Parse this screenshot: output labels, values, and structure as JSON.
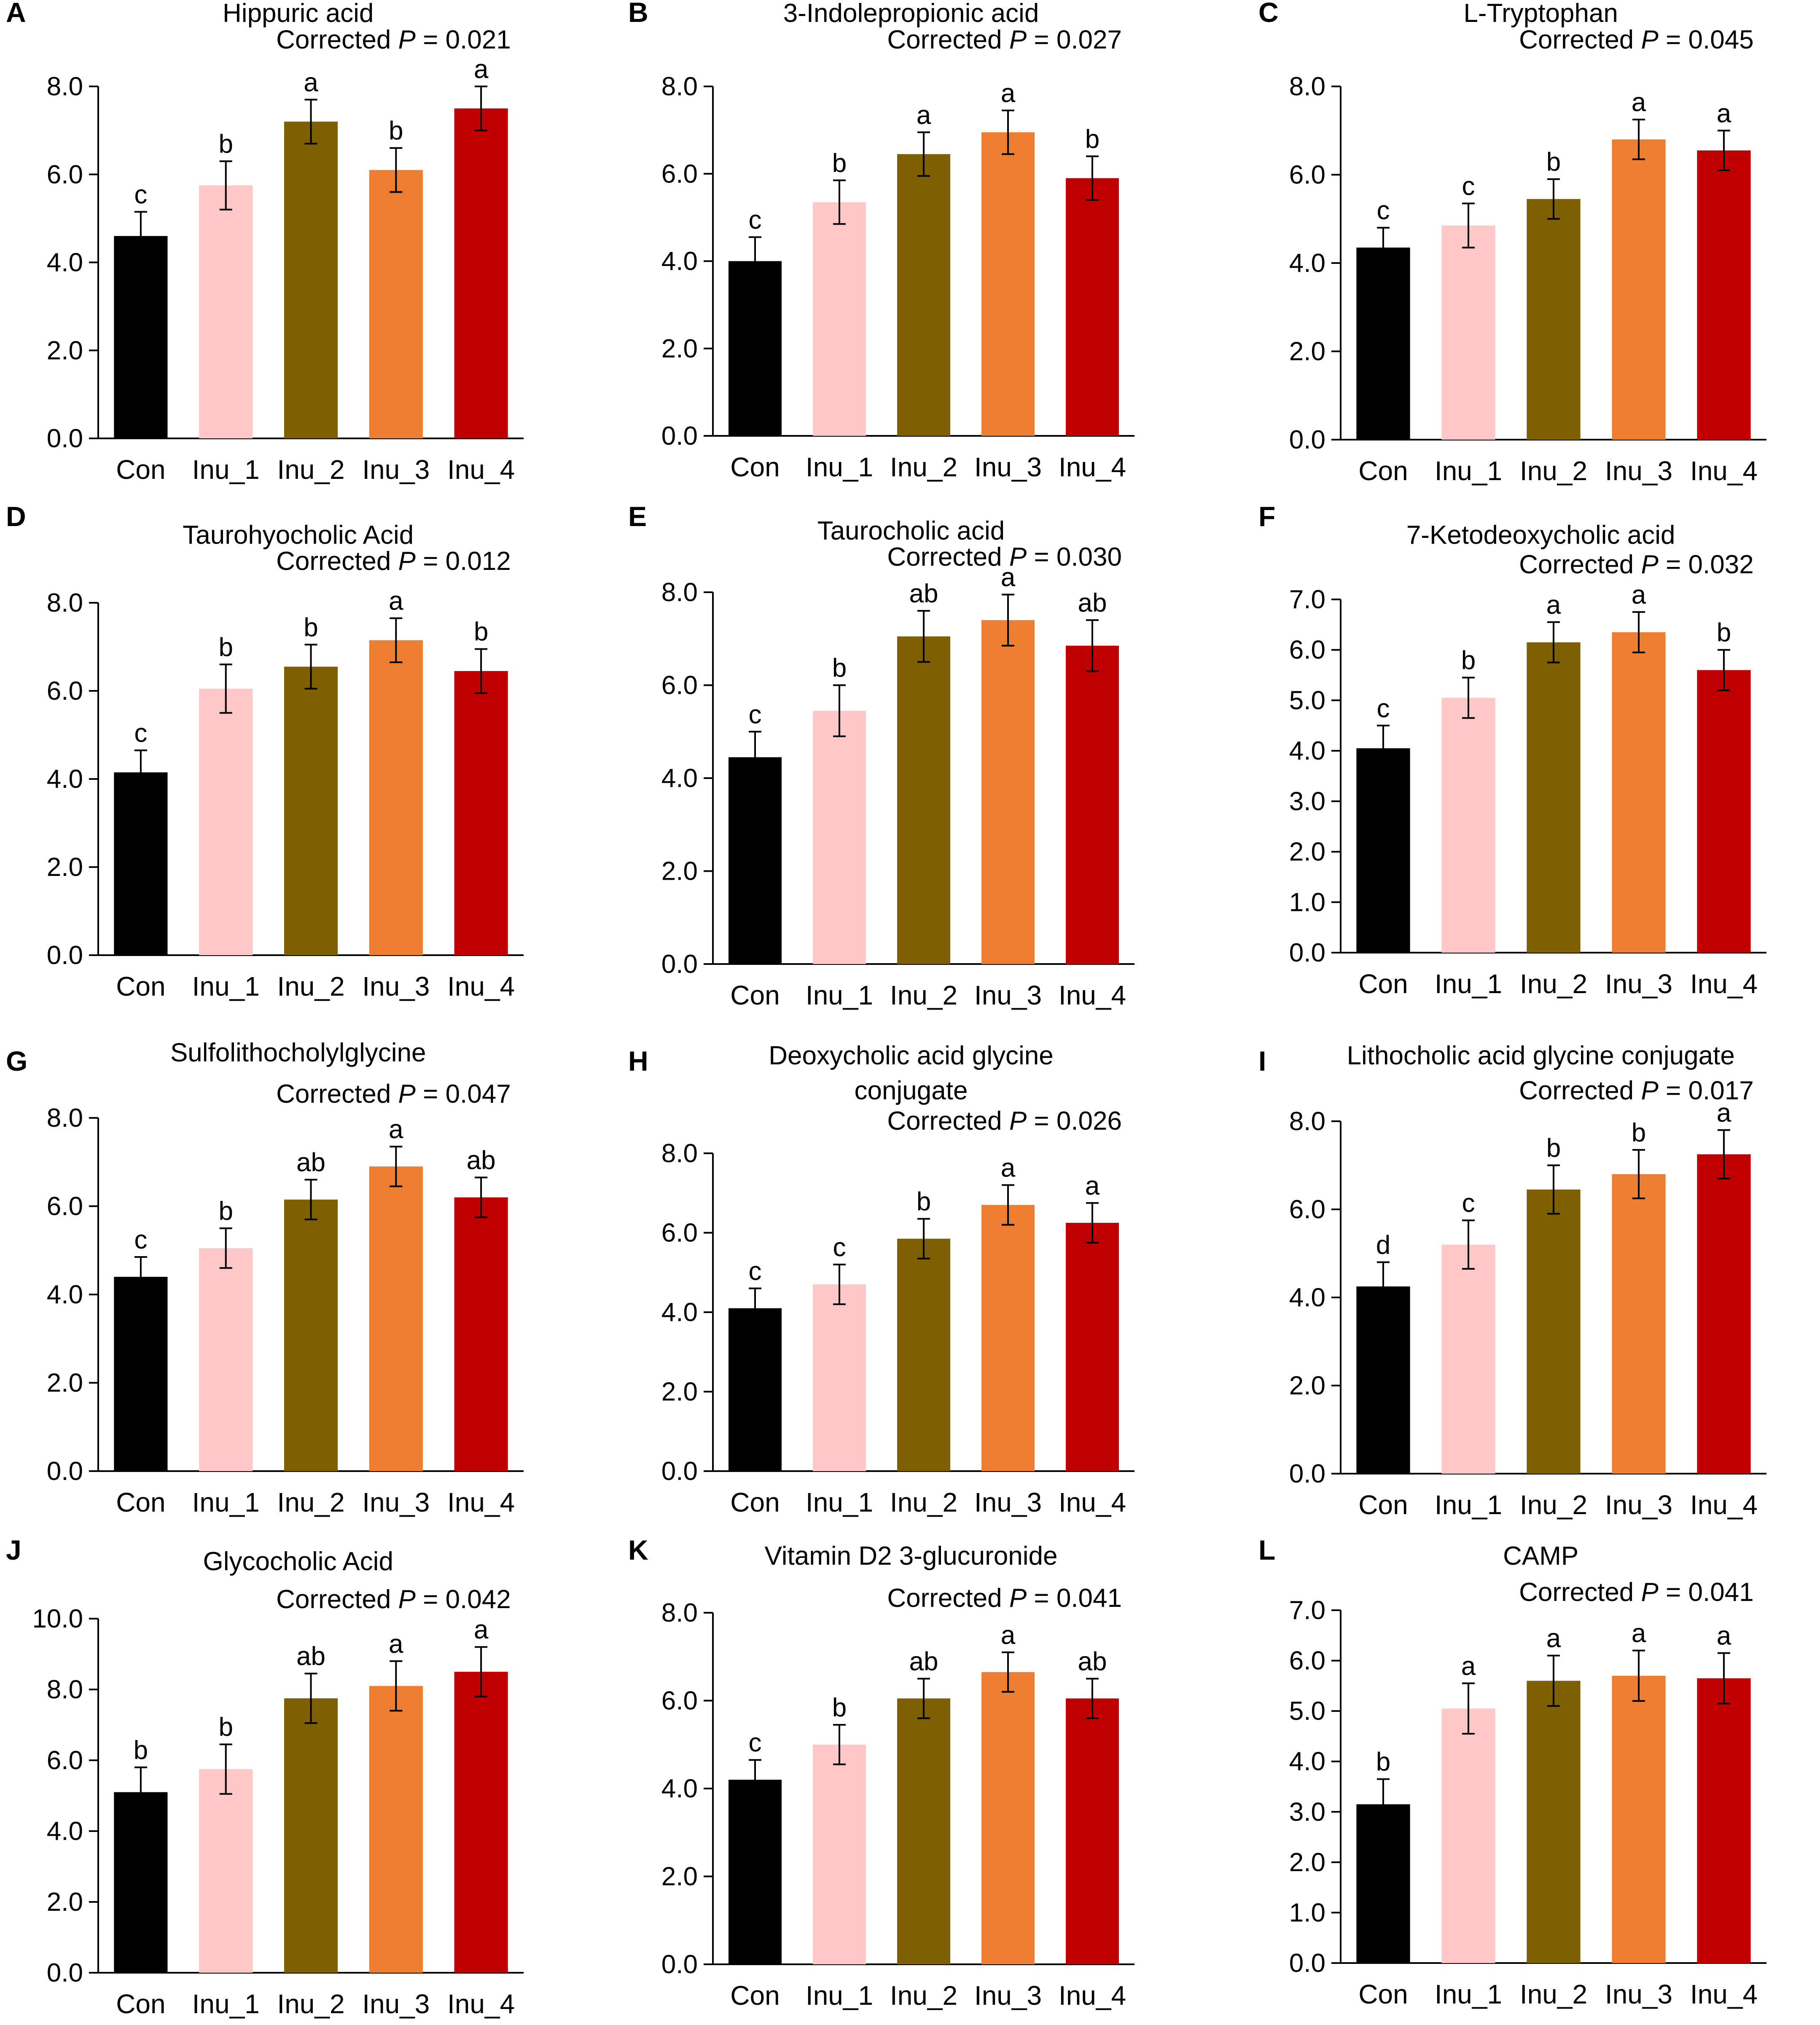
{
  "colors": {
    "Con": "#000000",
    "Inu_1": "#FFC8C8",
    "Inu_2": "#7F6000",
    "Inu_3": "#ED7D31",
    "Inu_4": "#C00000"
  },
  "pval_prefix": "Corrected",
  "pval_symbol": "P",
  "chart_data": [
    {
      "type": "bar",
      "panel": "A",
      "title": "Hippuric acid",
      "pval_rest": " = 0.021",
      "categories": [
        "Con",
        "Inu_1",
        "Inu_2",
        "Inu_3",
        "Inu_4"
      ],
      "values": [
        4.6,
        5.75,
        7.2,
        6.1,
        7.5
      ],
      "errors": [
        0.55,
        0.55,
        0.5,
        0.5,
        0.5
      ],
      "letters": [
        "c",
        "b",
        "a",
        "b",
        "a"
      ],
      "ylim": [
        0,
        8
      ],
      "yticks": [
        "0.0",
        "2.0",
        "4.0",
        "6.0",
        "8.0"
      ]
    },
    {
      "type": "bar",
      "panel": "B",
      "title": "3-Indolepropionic acid",
      "pval_rest": " = 0.027",
      "categories": [
        "Con",
        "Inu_1",
        "Inu_2",
        "Inu_3",
        "Inu_4"
      ],
      "values": [
        4.0,
        5.35,
        6.45,
        6.95,
        5.9
      ],
      "errors": [
        0.55,
        0.5,
        0.5,
        0.5,
        0.5
      ],
      "letters": [
        "c",
        "b",
        "a",
        "a",
        "b"
      ],
      "ylim": [
        0,
        8
      ],
      "yticks": [
        "0.0",
        "2.0",
        "4.0",
        "6.0",
        "8.0"
      ]
    },
    {
      "type": "bar",
      "panel": "C",
      "title": "L-Tryptophan",
      "pval_rest": " = 0.045",
      "categories": [
        "Con",
        "Inu_1",
        "Inu_2",
        "Inu_3",
        "Inu_4"
      ],
      "values": [
        4.35,
        4.85,
        5.45,
        6.8,
        6.55
      ],
      "errors": [
        0.45,
        0.5,
        0.45,
        0.45,
        0.45
      ],
      "letters": [
        "c",
        "c",
        "b",
        "a",
        "a"
      ],
      "ylim": [
        0,
        8
      ],
      "yticks": [
        "0.0",
        "2.0",
        "4.0",
        "6.0",
        "8.0"
      ]
    },
    {
      "type": "bar",
      "panel": "D",
      "title": "Taurohyocholic Acid",
      "pval_rest": " = 0.012",
      "categories": [
        "Con",
        "Inu_1",
        "Inu_2",
        "Inu_3",
        "Inu_4"
      ],
      "values": [
        4.15,
        6.05,
        6.55,
        7.15,
        6.45
      ],
      "errors": [
        0.5,
        0.55,
        0.5,
        0.5,
        0.5
      ],
      "letters": [
        "c",
        "b",
        "b",
        "a",
        "b"
      ],
      "ylim": [
        0,
        8
      ],
      "yticks": [
        "0.0",
        "2.0",
        "4.0",
        "6.0",
        "8.0"
      ]
    },
    {
      "type": "bar",
      "panel": "E",
      "title": "Taurocholic acid",
      "pval_rest": " = 0.030",
      "categories": [
        "Con",
        "Inu_1",
        "Inu_2",
        "Inu_3",
        "Inu_4"
      ],
      "values": [
        4.45,
        5.45,
        7.05,
        7.4,
        6.85
      ],
      "errors": [
        0.55,
        0.55,
        0.55,
        0.55,
        0.55
      ],
      "letters": [
        "c",
        "b",
        "ab",
        "a",
        "ab"
      ],
      "ylim": [
        0,
        8
      ],
      "yticks": [
        "0.0",
        "2.0",
        "4.0",
        "6.0",
        "8.0"
      ]
    },
    {
      "type": "bar",
      "panel": "F",
      "title": "7-Ketodeoxycholic acid",
      "pval_rest": " = 0.032",
      "categories": [
        "Con",
        "Inu_1",
        "Inu_2",
        "Inu_3",
        "Inu_4"
      ],
      "values": [
        4.05,
        5.05,
        6.15,
        6.35,
        5.6
      ],
      "errors": [
        0.45,
        0.4,
        0.4,
        0.4,
        0.4
      ],
      "letters": [
        "c",
        "b",
        "a",
        "a",
        "b"
      ],
      "ylim": [
        0,
        7
      ],
      "yticks": [
        "0.0",
        "1.0",
        "2.0",
        "3.0",
        "4.0",
        "5.0",
        "6.0",
        "7.0"
      ]
    },
    {
      "type": "bar",
      "panel": "G",
      "title": "Sulfolithocholylglycine",
      "pval_rest": " = 0.047",
      "categories": [
        "Con",
        "Inu_1",
        "Inu_2",
        "Inu_3",
        "Inu_4"
      ],
      "values": [
        4.4,
        5.05,
        6.15,
        6.9,
        6.2
      ],
      "errors": [
        0.45,
        0.45,
        0.45,
        0.45,
        0.45
      ],
      "letters": [
        "c",
        "b",
        "ab",
        "a",
        "ab"
      ],
      "ylim": [
        0,
        8
      ],
      "yticks": [
        "0.0",
        "2.0",
        "4.0",
        "6.0",
        "8.0"
      ]
    },
    {
      "type": "bar",
      "panel": "H",
      "title": "Deoxycholic acid glycine conjugate",
      "pval_rest": " = 0.026",
      "categories": [
        "Con",
        "Inu_1",
        "Inu_2",
        "Inu_3",
        "Inu_4"
      ],
      "values": [
        4.1,
        4.7,
        5.85,
        6.7,
        6.25
      ],
      "errors": [
        0.5,
        0.5,
        0.5,
        0.5,
        0.5
      ],
      "letters": [
        "c",
        "c",
        "b",
        "a",
        "a"
      ],
      "ylim": [
        0,
        8
      ],
      "yticks": [
        "0.0",
        "2.0",
        "4.0",
        "6.0",
        "8.0"
      ]
    },
    {
      "type": "bar",
      "panel": "I",
      "title": "Lithocholic acid glycine conjugate",
      "pval_rest": " = 0.017",
      "categories": [
        "Con",
        "Inu_1",
        "Inu_2",
        "Inu_3",
        "Inu_4"
      ],
      "values": [
        4.25,
        5.2,
        6.45,
        6.8,
        7.25
      ],
      "errors": [
        0.55,
        0.55,
        0.55,
        0.55,
        0.55
      ],
      "letters": [
        "d",
        "c",
        "b",
        "b",
        "a"
      ],
      "ylim": [
        0,
        8
      ],
      "yticks": [
        "0.0",
        "2.0",
        "4.0",
        "6.0",
        "8.0"
      ]
    },
    {
      "type": "bar",
      "panel": "J",
      "title": "Glycocholic Acid",
      "pval_rest": " = 0.042",
      "categories": [
        "Con",
        "Inu_1",
        "Inu_2",
        "Inu_3",
        "Inu_4"
      ],
      "values": [
        5.1,
        5.75,
        7.75,
        8.1,
        8.5
      ],
      "errors": [
        0.7,
        0.7,
        0.7,
        0.7,
        0.7
      ],
      "letters": [
        "b",
        "b",
        "ab",
        "a",
        "a"
      ],
      "ylim": [
        0,
        10
      ],
      "yticks": [
        "0.0",
        "2.0",
        "4.0",
        "6.0",
        "8.0",
        "10.0"
      ]
    },
    {
      "type": "bar",
      "panel": "K",
      "title": "Vitamin D2 3-glucuronide",
      "pval_rest": " = 0.041",
      "categories": [
        "Con",
        "Inu_1",
        "Inu_2",
        "Inu_3",
        "Inu_4"
      ],
      "values": [
        4.2,
        5.0,
        6.05,
        6.65,
        6.05
      ],
      "errors": [
        0.45,
        0.45,
        0.45,
        0.45,
        0.45
      ],
      "letters": [
        "c",
        "b",
        "ab",
        "a",
        "ab"
      ],
      "ylim": [
        0,
        8
      ],
      "yticks": [
        "0.0",
        "2.0",
        "4.0",
        "6.0",
        "8.0"
      ]
    },
    {
      "type": "bar",
      "panel": "L",
      "title": "CAMP",
      "pval_rest": " = 0.041",
      "categories": [
        "Con",
        "Inu_1",
        "Inu_2",
        "Inu_3",
        "Inu_4"
      ],
      "values": [
        3.15,
        5.05,
        5.6,
        5.7,
        5.65
      ],
      "errors": [
        0.5,
        0.5,
        0.5,
        0.5,
        0.5
      ],
      "letters": [
        "b",
        "a",
        "a",
        "a",
        "a"
      ],
      "ylim": [
        0,
        7
      ],
      "yticks": [
        "0.0",
        "1.0",
        "2.0",
        "3.0",
        "4.0",
        "5.0",
        "6.0",
        "7.0"
      ]
    }
  ]
}
